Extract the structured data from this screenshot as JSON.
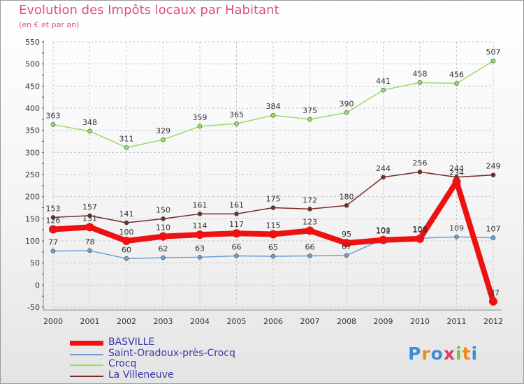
{
  "title": "Evolution des Impôts locaux par Habitant",
  "subtitle": "(en € et par an)",
  "logo_text": "Proxiti",
  "colors": {
    "title": "#e0507a",
    "axis_text": "#333333",
    "grid": "#c8c8c8",
    "legend_text": "#3a3aa8"
  },
  "chart_data": {
    "type": "line",
    "title": "Evolution des Impôts locaux par Habitant",
    "subtitle": "(en € et par an)",
    "xlabel": "",
    "ylabel": "",
    "x": [
      "2000",
      "2001",
      "2002",
      "2003",
      "2004",
      "2005",
      "2006",
      "2007",
      "2008",
      "2009",
      "2010",
      "2011",
      "2012"
    ],
    "ylim": [
      -50,
      550
    ],
    "yticks": [
      -50,
      0,
      50,
      100,
      150,
      200,
      250,
      300,
      350,
      400,
      450,
      500,
      550
    ],
    "grid": true,
    "legend_position": "bottom-left",
    "series": [
      {
        "name": "BASVILLE",
        "color": "#ee1111",
        "width": 8,
        "marker": 6,
        "values": [
          126,
          131,
          100,
          110,
          114,
          117,
          115,
          123,
          95,
          102,
          105,
          234,
          -37
        ]
      },
      {
        "name": "Saint-Oradoux-près-Crocq",
        "color": "#6f9ed6",
        "width": 1.5,
        "marker": 3,
        "values": [
          77,
          78,
          60,
          62,
          63,
          66,
          65,
          66,
          67,
          104,
          106,
          109,
          107
        ]
      },
      {
        "name": "Crocq",
        "color": "#99dd66",
        "width": 1.5,
        "marker": 3,
        "values": [
          363,
          348,
          311,
          329,
          359,
          365,
          384,
          375,
          390,
          441,
          458,
          456,
          507
        ]
      },
      {
        "name": "La Villeneuve",
        "color": "#7a2a2a",
        "width": 1.5,
        "marker": 3,
        "values": [
          153,
          157,
          141,
          150,
          161,
          161,
          175,
          172,
          180,
          244,
          256,
          244,
          249
        ]
      }
    ]
  }
}
